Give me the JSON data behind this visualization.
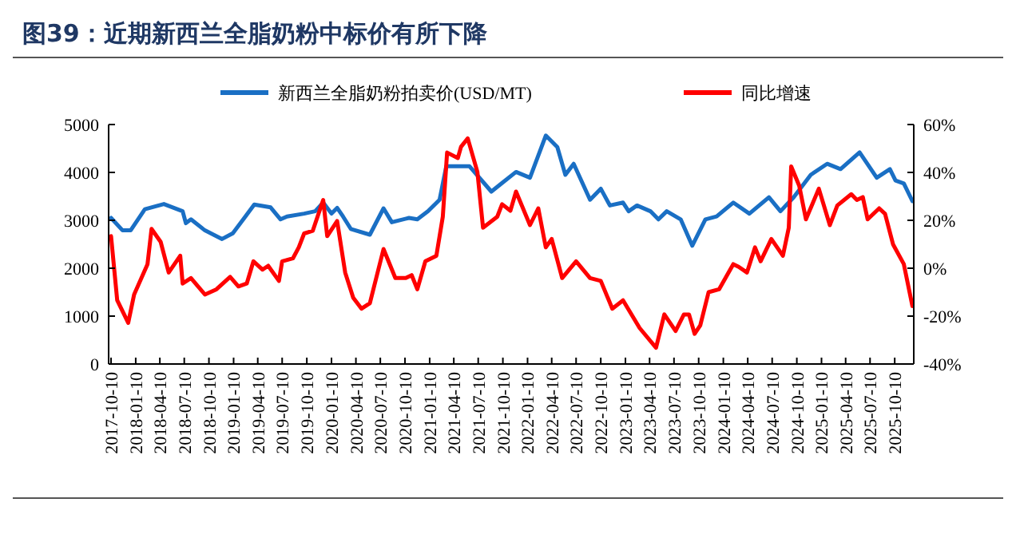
{
  "chart_data": {
    "type": "line",
    "title": "图39：近期新西兰全脂奶粉中标价有所下降",
    "xlim": [
      "2017-10-01",
      "2025-12-20"
    ],
    "xticks": [
      "2017-10-10",
      "2018-01-10",
      "2018-04-10",
      "2018-07-10",
      "2018-10-10",
      "2019-01-10",
      "2019-04-10",
      "2019-07-10",
      "2019-10-10",
      "2020-01-10",
      "2020-04-10",
      "2020-07-10",
      "2020-10-10",
      "2021-01-10",
      "2021-04-10",
      "2021-07-10",
      "2021-10-10",
      "2022-01-10",
      "2022-04-10",
      "2022-07-10",
      "2022-10-10",
      "2023-01-10",
      "2023-04-10",
      "2023-07-10",
      "2023-10-10",
      "2024-01-10",
      "2024-04-10",
      "2024-07-10",
      "2024-10-10",
      "2025-01-10",
      "2025-04-10",
      "2025-07-10",
      "2025-10-10"
    ],
    "ylim": [
      0,
      5000
    ],
    "yticks": [
      0,
      1000,
      2000,
      3000,
      4000,
      5000
    ],
    "y2lim": [
      -40,
      60
    ],
    "y2ticks": [
      {
        "value": -40,
        "label": "-40%"
      },
      {
        "value": -20,
        "label": "-20%"
      },
      {
        "value": 0,
        "label": "0%"
      },
      {
        "value": 20,
        "label": "20%"
      },
      {
        "value": 40,
        "label": "40%"
      },
      {
        "value": 60,
        "label": "60%"
      }
    ],
    "legend": "top",
    "grid": false,
    "marker": "none",
    "line_style": "solid",
    "series": [
      {
        "name": "新西兰全脂奶粉拍卖价(USD/MT)",
        "color": "#1a6fc4",
        "x": [
          "2017-10-10",
          "2017-11-22",
          "2017-12-22",
          "2018-02-13",
          "2018-04-25",
          "2018-07-04",
          "2018-07-16",
          "2018-08-04",
          "2018-09-25",
          "2018-11-28",
          "2019-01-07",
          "2019-02-19",
          "2019-03-28",
          "2019-05-28",
          "2019-07-04",
          "2019-07-28",
          "2019-09-30",
          "2019-11-10",
          "2019-12-10",
          "2020-01-10",
          "2020-01-31",
          "2020-02-22",
          "2020-03-22",
          "2020-06-01",
          "2020-07-22",
          "2020-08-22",
          "2020-10-25",
          "2020-11-25",
          "2021-01-04",
          "2021-02-16",
          "2021-03-13",
          "2021-06-07",
          "2021-08-28",
          "2021-10-07",
          "2021-11-28",
          "2022-01-19",
          "2022-03-19",
          "2022-05-01",
          "2022-05-31",
          "2022-07-01",
          "2022-08-31",
          "2022-10-10",
          "2022-11-13",
          "2023-01-01",
          "2023-01-22",
          "2023-02-22",
          "2023-04-13",
          "2023-05-13",
          "2023-06-13",
          "2023-08-04",
          "2023-09-16",
          "2023-11-04",
          "2023-12-16",
          "2024-02-16",
          "2024-04-16",
          "2024-06-28",
          "2024-08-10",
          "2024-09-28",
          "2024-12-01",
          "2025-01-31",
          "2025-03-22",
          "2025-06-01",
          "2025-08-04",
          "2025-09-22",
          "2025-10-13",
          "2025-11-13",
          "2025-12-15"
        ],
        "values": [
          3050,
          2790,
          2790,
          3230,
          3340,
          3190,
          2940,
          3020,
          2790,
          2610,
          2730,
          3050,
          3330,
          3270,
          3020,
          3080,
          3140,
          3190,
          3370,
          3140,
          3260,
          3080,
          2820,
          2700,
          3250,
          2960,
          3050,
          3020,
          3190,
          3430,
          4130,
          4130,
          3600,
          3780,
          4010,
          3890,
          4770,
          4530,
          3950,
          4180,
          3430,
          3660,
          3310,
          3370,
          3190,
          3310,
          3190,
          3020,
          3190,
          3020,
          2470,
          3020,
          3080,
          3370,
          3140,
          3480,
          3190,
          3480,
          3950,
          4180,
          4070,
          4420,
          3890,
          4070,
          3830,
          3770,
          3400
        ]
      },
      {
        "name": "同比增速",
        "color": "#ff0000",
        "axis": "y2",
        "x": [
          "2017-10-10",
          "2017-11-02",
          "2017-12-13",
          "2018-01-04",
          "2018-02-23",
          "2018-03-10",
          "2018-04-13",
          "2018-05-13",
          "2018-06-25",
          "2018-07-04",
          "2018-08-04",
          "2018-09-25",
          "2018-11-07",
          "2018-12-28",
          "2019-01-28",
          "2019-02-28",
          "2019-03-25",
          "2019-04-28",
          "2019-05-19",
          "2019-06-28",
          "2019-07-10",
          "2019-08-19",
          "2019-09-10",
          "2019-09-30",
          "2019-11-01",
          "2019-12-10",
          "2019-12-25",
          "2020-01-31",
          "2020-03-01",
          "2020-03-31",
          "2020-05-01",
          "2020-06-01",
          "2020-07-22",
          "2020-09-04",
          "2020-10-13",
          "2020-11-04",
          "2020-11-25",
          "2020-12-25",
          "2021-02-04",
          "2021-02-28",
          "2021-03-16",
          "2021-04-25",
          "2021-05-07",
          "2021-06-01",
          "2021-07-07",
          "2021-07-28",
          "2021-09-19",
          "2021-10-07",
          "2021-11-07",
          "2021-11-28",
          "2022-01-19",
          "2022-02-19",
          "2022-03-19",
          "2022-04-10",
          "2022-05-19",
          "2022-07-10",
          "2022-08-31",
          "2022-10-10",
          "2022-11-22",
          "2023-01-01",
          "2023-03-04",
          "2023-05-04",
          "2023-06-04",
          "2023-07-16",
          "2023-08-16",
          "2023-09-04",
          "2023-09-25",
          "2023-10-16",
          "2023-11-16",
          "2023-12-25",
          "2024-02-16",
          "2024-03-07",
          "2024-04-07",
          "2024-05-07",
          "2024-05-28",
          "2024-07-07",
          "2024-08-19",
          "2024-09-10",
          "2024-09-19",
          "2024-10-19",
          "2024-11-13",
          "2024-12-31",
          "2025-02-10",
          "2025-03-10",
          "2025-05-01",
          "2025-05-22",
          "2025-06-13",
          "2025-07-01",
          "2025-08-13",
          "2025-09-04",
          "2025-10-04",
          "2025-11-13",
          "2025-12-15"
        ],
        "values": [
          13.4,
          -13.4,
          -22.8,
          -11,
          1.7,
          16.4,
          11,
          -1.8,
          5.2,
          -6.4,
          -4.1,
          -11,
          -8.8,
          -3.6,
          -7.6,
          -6.4,
          2.9,
          -0.6,
          1,
          -5.3,
          2.9,
          4.1,
          8.7,
          14.5,
          15.6,
          28.5,
          13.4,
          19.7,
          -1.8,
          -12.3,
          -16.9,
          -14.6,
          8,
          -4.1,
          -4.1,
          -2.9,
          -8.8,
          2.9,
          5.2,
          21.5,
          48.3,
          46,
          50.7,
          54.2,
          40.2,
          16.9,
          21.5,
          26.7,
          24,
          32,
          18,
          25,
          8.7,
          12.2,
          -4.1,
          2.9,
          -4.1,
          -5.3,
          -16.9,
          -13.4,
          -25,
          -33.2,
          -19.3,
          -26.2,
          -19.3,
          -19.3,
          -27.4,
          -23.9,
          -10,
          -8.8,
          1.7,
          0.6,
          -1.8,
          8.7,
          2.9,
          12.2,
          5.2,
          16.9,
          42.5,
          34.4,
          20.4,
          33.2,
          18,
          26.2,
          30.9,
          28.5,
          29.7,
          20.4,
          25,
          22.7,
          9.9,
          1.7,
          -15.8
        ]
      }
    ]
  }
}
